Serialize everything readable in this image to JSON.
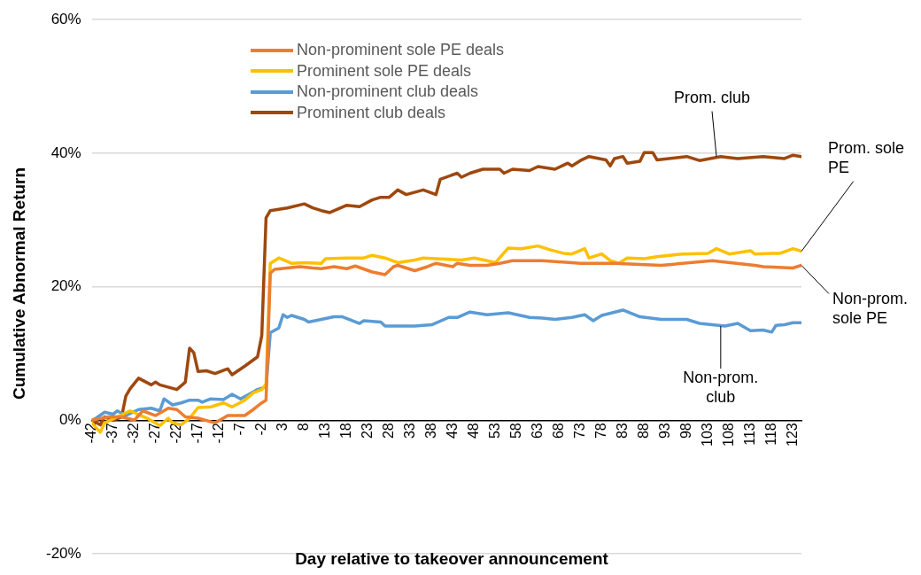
{
  "chart_data": {
    "type": "line",
    "xlabel": "Day relative to takeover announcement",
    "ylabel": "Cumulative Abnormal Return",
    "xlim": [
      -42,
      125
    ],
    "xticks": [
      -42,
      -37,
      -32,
      -27,
      -22,
      -17,
      -12,
      -7,
      -2,
      3,
      8,
      13,
      18,
      23,
      28,
      33,
      38,
      43,
      48,
      53,
      58,
      63,
      68,
      73,
      78,
      83,
      88,
      93,
      98,
      103,
      108,
      113,
      118,
      123
    ],
    "ylim": [
      -20,
      60
    ],
    "yticks": [
      {
        "value": -20,
        "label": "-20%"
      },
      {
        "value": 0,
        "label": "0%"
      },
      {
        "value": 20,
        "label": "20%"
      },
      {
        "value": 40,
        "label": "40%"
      },
      {
        "value": 60,
        "label": "60%"
      }
    ],
    "grid": "y",
    "legend": "top left",
    "marker": "none",
    "line_style": "solid",
    "series": [
      {
        "name": "Non-prominent sole PE deals",
        "color": "#ed7d31",
        "x": [
          -42,
          -38,
          -35,
          -32,
          -30,
          -27,
          -24,
          -22,
          -20,
          -17,
          -13,
          -10,
          -6,
          -4,
          -2,
          -1,
          0,
          1,
          4,
          7,
          10,
          12,
          15,
          18,
          20,
          24,
          27,
          29,
          30,
          34,
          37,
          39,
          43,
          44,
          47,
          51,
          54,
          57,
          64,
          71,
          73,
          81,
          92,
          104,
          114,
          116,
          123,
          125
        ],
        "values": [
          0,
          0.5,
          0.5,
          0,
          1.4,
          0.7,
          1.8,
          1.6,
          0.5,
          0.3,
          -0.4,
          0.7,
          0.7,
          1.6,
          2.6,
          3.0,
          22.0,
          22.6,
          22.8,
          23,
          22.8,
          22.7,
          23,
          22.7,
          23.1,
          22.2,
          21.8,
          23,
          23.2,
          22.4,
          23,
          23.5,
          23,
          23.5,
          23.2,
          23.2,
          23.5,
          23.9,
          23.9,
          23.6,
          23.5,
          23.5,
          23.2,
          23.9,
          23.2,
          23,
          22.8,
          23.2
        ]
      },
      {
        "name": "Prominent sole PE deals",
        "color": "#ffc000",
        "x": [
          -42,
          -40,
          -39,
          -36,
          -33,
          -29,
          -26,
          -24,
          -23,
          -21,
          -19,
          -17,
          -14,
          -11,
          -9,
          -6,
          -4,
          -2,
          -1,
          0,
          2,
          5,
          8,
          12,
          13,
          18,
          22,
          24,
          27,
          30,
          34,
          36,
          39,
          45,
          48,
          51,
          53,
          56,
          59,
          63,
          66,
          69,
          71,
          74,
          75,
          78,
          80,
          82,
          84,
          88,
          91,
          97,
          103,
          105,
          108,
          113,
          114,
          118,
          120,
          123,
          125
        ],
        "values": [
          -0.4,
          -1.8,
          -0.4,
          0.5,
          1.4,
          0.3,
          -0.8,
          0.3,
          -0.4,
          -0.7,
          0.3,
          1.9,
          2,
          2.6,
          2,
          3,
          4.1,
          4.6,
          5.4,
          23.5,
          24.3,
          23.5,
          23.6,
          23.5,
          24.2,
          24.3,
          24.3,
          24.7,
          24.3,
          23.6,
          24,
          24.3,
          24.2,
          24,
          24.3,
          23.9,
          23.6,
          25.8,
          25.7,
          26.1,
          25.5,
          25,
          24.9,
          25.7,
          24.3,
          24.9,
          23.9,
          23.5,
          24.3,
          24.2,
          24.5,
          24.9,
          25,
          25.7,
          24.9,
          25.4,
          24.9,
          25,
          25,
          25.7,
          25.3
        ]
      },
      {
        "name": "Non-prominent club deals",
        "color": "#5b9bd5",
        "x": [
          -42,
          -41,
          -39,
          -37,
          -36,
          -34,
          -31,
          -28,
          -26,
          -25,
          -23,
          -21,
          -19,
          -17,
          -16,
          -14,
          -11,
          -9,
          -7,
          -5,
          -3,
          -1,
          0,
          2,
          3,
          4,
          5,
          8,
          9,
          12,
          15,
          17,
          21,
          22,
          26,
          27,
          34,
          38,
          42,
          44,
          47,
          51,
          56,
          61,
          64,
          67,
          71,
          74,
          76,
          78,
          83,
          87,
          92,
          98,
          101,
          107,
          110,
          113,
          116,
          118,
          119,
          121,
          123,
          125
        ],
        "values": [
          0,
          0.3,
          1.2,
          0.9,
          1.4,
          0.7,
          1.6,
          1.8,
          1.4,
          3.2,
          2.3,
          2.6,
          3,
          3,
          2.7,
          3.2,
          3.1,
          3.9,
          3.2,
          3.9,
          4.6,
          5,
          13.1,
          13.8,
          15.8,
          15.4,
          15.7,
          15.1,
          14.7,
          15.1,
          15.5,
          15.5,
          14.5,
          14.9,
          14.7,
          14.1,
          14.1,
          14.3,
          15.4,
          15.4,
          16.2,
          15.8,
          16.1,
          15.4,
          15.3,
          15.1,
          15.4,
          15.8,
          14.9,
          15.7,
          16.5,
          15.5,
          15.1,
          15.1,
          14.5,
          14.1,
          14.5,
          13.4,
          13.5,
          13.2,
          14.2,
          14.3,
          14.6,
          14.6
        ]
      },
      {
        "name": "Prominent club deals",
        "color": "#9e480e",
        "x": [
          -42,
          -40,
          -39,
          -37,
          -35,
          -34,
          -33,
          -31,
          -28,
          -27,
          -26,
          -22,
          -20,
          -19,
          -18,
          -17,
          -15,
          -13,
          -10,
          -9,
          -6,
          -3,
          -2,
          -1,
          0,
          4,
          8,
          10,
          12,
          14,
          18,
          21,
          24,
          26,
          28,
          30,
          32,
          36,
          39,
          40,
          44,
          45,
          47,
          50,
          54,
          55,
          57,
          61,
          63,
          67,
          70,
          71,
          73,
          75,
          79,
          80,
          81,
          83,
          84,
          87,
          88,
          90,
          91,
          98,
          101,
          106,
          110,
          116,
          121,
          123,
          125
        ],
        "values": [
          0,
          -0.7,
          0.5,
          0,
          0.5,
          3.6,
          4.7,
          6.3,
          5.3,
          5.7,
          5.3,
          4.6,
          5.7,
          10.8,
          10.1,
          7.3,
          7.4,
          7,
          7.7,
          6.8,
          8.1,
          9.5,
          12.7,
          30.3,
          31.4,
          31.8,
          32.4,
          31.8,
          31.4,
          31.1,
          32.2,
          32,
          33,
          33.4,
          33.4,
          34.5,
          33.8,
          34.5,
          33.8,
          36.1,
          37,
          36.4,
          37,
          37.6,
          37.6,
          37,
          37.6,
          37.4,
          38,
          37.6,
          38.5,
          38.1,
          38.9,
          39.5,
          39,
          38.1,
          39.2,
          39.5,
          38.5,
          38.8,
          40.1,
          40.1,
          39,
          39.5,
          38.9,
          39.5,
          39.2,
          39.5,
          39.2,
          39.7,
          39.5
        ]
      }
    ],
    "annotations": [
      {
        "text": "Prom. club",
        "x": 105,
        "y": 39.5
      },
      {
        "text": "Prom. sole PE",
        "x": 125,
        "y": 25.3
      },
      {
        "text": "Non-prom. sole PE",
        "x": 125,
        "y": 23.2
      },
      {
        "text": "Non-prom. club",
        "x": 106,
        "y": 14.1
      }
    ]
  }
}
